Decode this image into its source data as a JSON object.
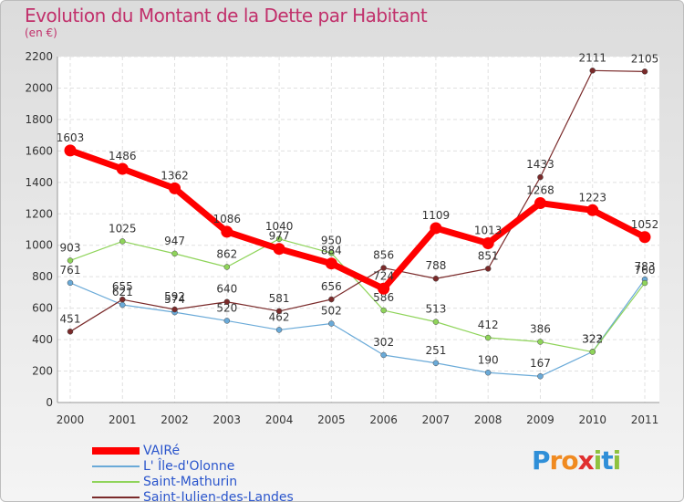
{
  "header": {
    "title": "Evolution du Montant de la Dette par Habitant",
    "subtitle": "(en €)"
  },
  "logo": {
    "text": "Proxiti",
    "letters": [
      "P",
      "r",
      "o",
      "x",
      "i",
      "t",
      "i"
    ],
    "colors": [
      "#2f8fd8",
      "#f08a20",
      "#f08a20",
      "#e03030",
      "#8fc23f",
      "#2f8fd8",
      "#8fc23f"
    ]
  },
  "chart_data": {
    "type": "line",
    "title": "Evolution du Montant de la Dette par Habitant",
    "subtitle": "(en €)",
    "x": [
      "2000",
      "2001",
      "2002",
      "2003",
      "2004",
      "2005",
      "2006",
      "2007",
      "2008",
      "2009",
      "2010",
      "2011"
    ],
    "ylim": [
      0,
      2200
    ],
    "yticks": [
      0,
      200,
      400,
      600,
      800,
      1000,
      1200,
      1400,
      1600,
      1800,
      2000,
      2200
    ],
    "grid": true,
    "legend_position": "bottom-left",
    "series": [
      {
        "name": "VAIRé",
        "color": "#ff0000",
        "values": [
          1603,
          1486,
          1362,
          1086,
          977,
          884,
          724,
          1109,
          1013,
          1268,
          1223,
          1052
        ]
      },
      {
        "name": "L' Île-d'Olonne",
        "color": "#6aaad8",
        "values": [
          761,
          621,
          574,
          520,
          462,
          502,
          302,
          251,
          190,
          167,
          323,
          783
        ]
      },
      {
        "name": "Saint-Mathurin",
        "color": "#8fd45a",
        "values": [
          903,
          1025,
          947,
          862,
          1040,
          950,
          586,
          513,
          412,
          386,
          322,
          760
        ]
      },
      {
        "name": "Saint-Julien-des-Landes",
        "color": "#7a2a2a",
        "values": [
          451,
          655,
          592,
          640,
          581,
          656,
          856,
          788,
          851,
          1433,
          2111,
          2105
        ]
      }
    ]
  }
}
